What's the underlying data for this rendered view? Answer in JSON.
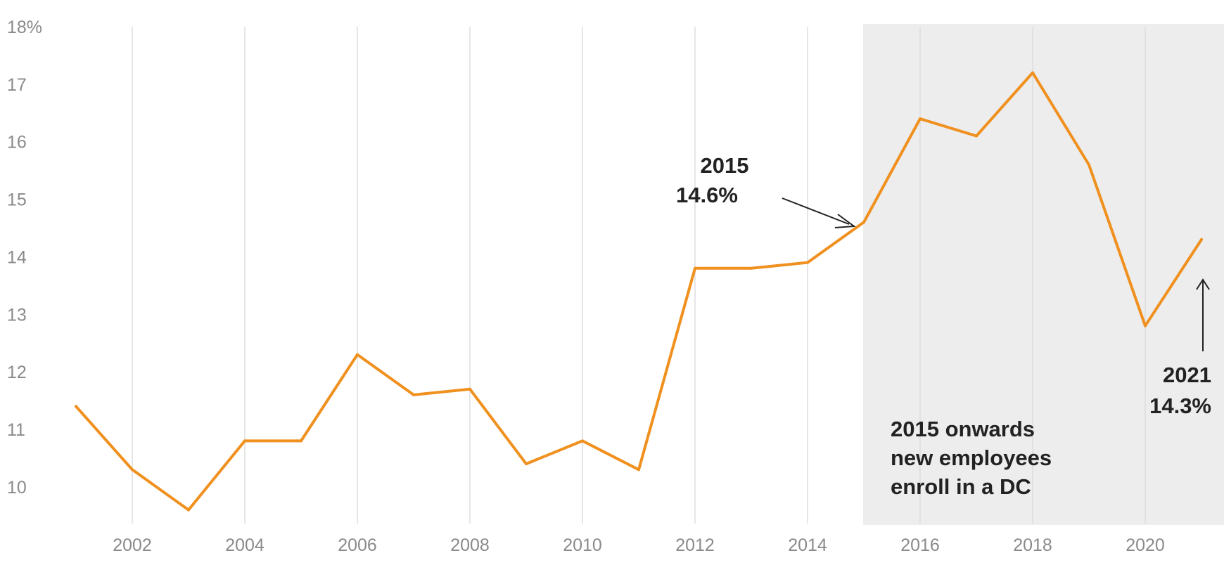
{
  "chart_data": {
    "type": "line",
    "title": "",
    "xlabel": "",
    "ylabel": "",
    "x": [
      2001,
      2002,
      2003,
      2004,
      2005,
      2006,
      2007,
      2008,
      2009,
      2010,
      2011,
      2012,
      2013,
      2014,
      2015,
      2016,
      2017,
      2018,
      2019,
      2020,
      2021
    ],
    "series": [
      {
        "values": [
          11.4,
          10.3,
          9.6,
          10.8,
          10.8,
          12.3,
          11.6,
          11.7,
          10.4,
          10.8,
          10.3,
          13.8,
          13.8,
          13.9,
          14.6,
          16.4,
          16.1,
          17.2,
          15.6,
          12.8,
          14.3
        ],
        "color": "#f0901e"
      }
    ],
    "xlim": [
      2001,
      2021
    ],
    "ylim": [
      9.4,
      18
    ],
    "x_ticks": [
      "2002",
      "2004",
      "2006",
      "2008",
      "2010",
      "2012",
      "2014",
      "2016",
      "2018",
      "2020"
    ],
    "y_ticks": [
      "18%",
      "17",
      "16",
      "15",
      "14",
      "13",
      "12",
      "11",
      "10"
    ],
    "vertical_grid": true,
    "shaded_region": {
      "from": 2015,
      "to": 2021,
      "color": "#ededed"
    },
    "annotations": {
      "point_2015": {
        "year": "2015",
        "value": "14.6%"
      },
      "point_2021": {
        "year": "2021",
        "value": "14.3%"
      },
      "region_note": [
        "2015 onwards",
        "new employees",
        "enroll in a DC"
      ]
    },
    "colors": {
      "line": "#f0901e",
      "grid": "#dddddd",
      "tick_text": "#8a8a8a",
      "annotation": "#222222"
    }
  }
}
